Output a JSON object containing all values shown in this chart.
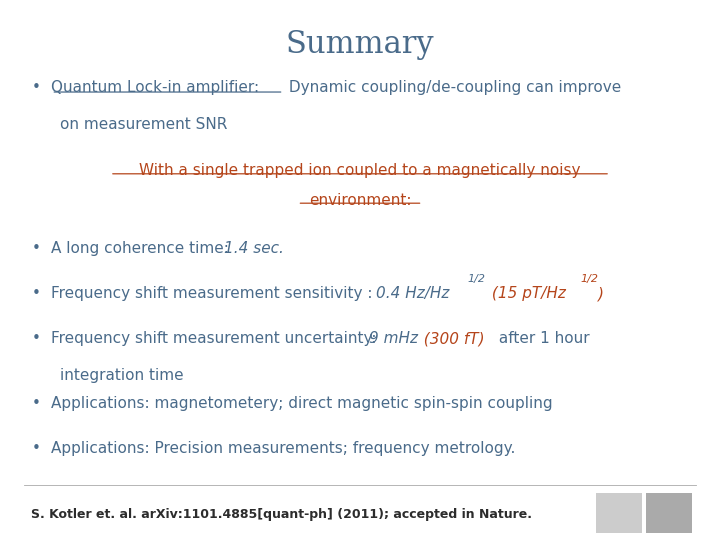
{
  "title": "Summary",
  "title_color": "#4a6b8a",
  "title_fontsize": 22,
  "background_color": "#ffffff",
  "body_color": "#4a6b8a",
  "red_color": "#b5451b",
  "centered_line1": "With a single trapped ion coupled to a magnetically noisy",
  "centered_line2": "environment:",
  "bullet1a": "Quantum Lock-in amplifier:",
  "bullet1b": " Dynamic coupling/de-coupling can improve",
  "bullet1c": "on measurement SNR",
  "bullet2a": "A long coherence time: ",
  "bullet2b": "1.4 sec.",
  "bullet3a": "Frequency shift measurement sensitivity : ",
  "bullet3b": "0.4 Hz/Hz",
  "bullet3c": "1/2",
  "bullet3d": " (15 pT/Hz",
  "bullet3e": "1/2",
  "bullet3f": ")",
  "bullet4a": "Frequency shift measurement uncertainty: ",
  "bullet4b": "9 mHz",
  "bullet4c": "  (300 fT)",
  "bullet4d": " after 1 hour",
  "bullet4e": "integration time",
  "bullet5": "Applications: magnetometery; direct magnetic spin-spin coupling",
  "bullet6": "Applications: Precision measurements; frequency metrology.",
  "footer": "S. Kotler et. al. arXiv:1101.4885[quant-ph] (2011); accepted in Nature.",
  "footer_color": "#2c2c2c",
  "footer_fontsize": 9
}
